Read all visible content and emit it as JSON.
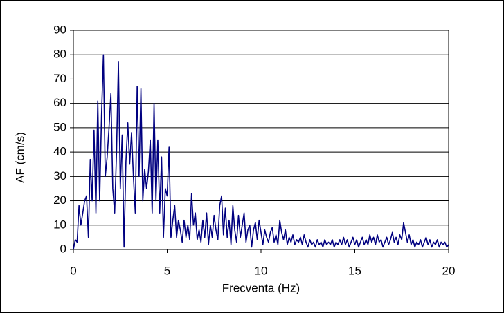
{
  "chart_data": {
    "type": "line",
    "x_label": "Frecventa (Hz)",
    "y_label": "AF (cm/s)",
    "x": [
      0,
      0.1,
      0.2,
      0.3,
      0.4,
      0.5,
      0.6,
      0.7,
      0.8,
      0.9,
      1,
      1.1,
      1.2,
      1.3,
      1.4,
      1.5,
      1.6,
      1.7,
      1.8,
      1.9,
      2,
      2.1,
      2.2,
      2.3,
      2.4,
      2.5,
      2.6,
      2.7,
      2.8,
      2.9,
      3,
      3.1,
      3.2,
      3.3,
      3.4,
      3.5,
      3.6,
      3.7,
      3.8,
      3.9,
      4,
      4.1,
      4.2,
      4.3,
      4.4,
      4.5,
      4.6,
      4.7,
      4.8,
      4.9,
      5,
      5.1,
      5.2,
      5.3,
      5.4,
      5.5,
      5.6,
      5.7,
      5.8,
      5.9,
      6,
      6.1,
      6.2,
      6.3,
      6.4,
      6.5,
      6.6,
      6.7,
      6.8,
      6.9,
      7,
      7.1,
      7.2,
      7.3,
      7.4,
      7.5,
      7.6,
      7.7,
      7.8,
      7.9,
      8,
      8.1,
      8.2,
      8.3,
      8.4,
      8.5,
      8.6,
      8.7,
      8.8,
      8.9,
      9,
      9.1,
      9.2,
      9.3,
      9.4,
      9.5,
      9.6,
      9.7,
      9.8,
      9.9,
      10,
      10.1,
      10.2,
      10.3,
      10.4,
      10.5,
      10.6,
      10.7,
      10.8,
      10.9,
      11,
      11.1,
      11.2,
      11.3,
      11.4,
      11.5,
      11.6,
      11.7,
      11.8,
      11.9,
      12,
      12.1,
      12.2,
      12.3,
      12.4,
      12.5,
      12.6,
      12.7,
      12.8,
      12.9,
      13,
      13.1,
      13.2,
      13.3,
      13.4,
      13.5,
      13.6,
      13.7,
      13.8,
      13.9,
      14,
      14.1,
      14.2,
      14.3,
      14.4,
      14.5,
      14.6,
      14.7,
      14.8,
      14.9,
      15,
      15.1,
      15.2,
      15.3,
      15.4,
      15.5,
      15.6,
      15.7,
      15.8,
      15.9,
      16,
      16.1,
      16.2,
      16.3,
      16.4,
      16.5,
      16.6,
      16.7,
      16.8,
      16.9,
      17,
      17.1,
      17.2,
      17.3,
      17.4,
      17.5,
      17.6,
      17.7,
      17.8,
      17.9,
      18,
      18.1,
      18.2,
      18.3,
      18.4,
      18.5,
      18.6,
      18.7,
      18.8,
      18.9,
      19,
      19.1,
      19.2,
      19.3,
      19.4,
      19.5,
      19.6,
      19.7,
      19.8,
      19.9,
      20
    ],
    "values": [
      0,
      4,
      3,
      18,
      10,
      15,
      20,
      22,
      5,
      37,
      20,
      49,
      15,
      61,
      20,
      55,
      80,
      30,
      38,
      50,
      64,
      25,
      15,
      40,
      77,
      25,
      47,
      1,
      36,
      52,
      35,
      48,
      30,
      15,
      67,
      30,
      66,
      20,
      33,
      25,
      32,
      45,
      15,
      60,
      20,
      45,
      15,
      38,
      5,
      25,
      22,
      42,
      5,
      12,
      18,
      5,
      12,
      8,
      3,
      12,
      5,
      10,
      4,
      23,
      10,
      15,
      4,
      8,
      3,
      12,
      5,
      15,
      2,
      10,
      5,
      14,
      8,
      4,
      18,
      22,
      6,
      17,
      5,
      12,
      2,
      18,
      8,
      3,
      14,
      5,
      10,
      15,
      3,
      8,
      10,
      1,
      8,
      11,
      4,
      12,
      7,
      2,
      8,
      5,
      3,
      7,
      9,
      3,
      6,
      2,
      12,
      7,
      4,
      8,
      2,
      5,
      3,
      6,
      2,
      4,
      3,
      5,
      2,
      6,
      3,
      1,
      4,
      2,
      3,
      1,
      4,
      2,
      3,
      1,
      4,
      2,
      3,
      2,
      4,
      1,
      3,
      2,
      4,
      2,
      5,
      2,
      4,
      1,
      3,
      5,
      2,
      4,
      1,
      3,
      5,
      2,
      4,
      2,
      6,
      3,
      5,
      2,
      6,
      3,
      4,
      1,
      3,
      5,
      2,
      4,
      7,
      3,
      5,
      2,
      6,
      4,
      11,
      7,
      3,
      6,
      2,
      4,
      1,
      3,
      2,
      4,
      1,
      3,
      5,
      2,
      4,
      1,
      3,
      2,
      4,
      1,
      3,
      2,
      3,
      1,
      2
    ],
    "color": "#000080",
    "xlim": [
      0,
      20
    ],
    "xticks": [
      0,
      5,
      10,
      15,
      20
    ],
    "ylim": [
      0,
      90
    ],
    "yticks": [
      0,
      10,
      20,
      30,
      40,
      50,
      60,
      70,
      80,
      90
    ],
    "grid": true
  }
}
